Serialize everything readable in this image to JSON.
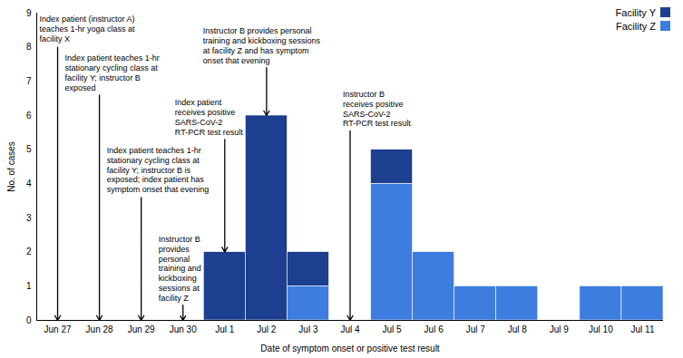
{
  "chart_data": {
    "type": "bar",
    "stacked": true,
    "x_label": "Date of symptom onset or positive test result",
    "y_label": "No. of cases",
    "categories": [
      "Jun 27",
      "Jun 28",
      "Jun 29",
      "Jun 30",
      "Jul 1",
      "Jul 2",
      "Jul 3",
      "Jul 4",
      "Jul 5",
      "Jul 6",
      "Jul 7",
      "Jul 8",
      "Jul 9",
      "Jul 10",
      "Jul 11"
    ],
    "series": [
      {
        "name": "Facility Y",
        "color": "#1d3f8f",
        "values": [
          0,
          0,
          0,
          0,
          2,
          6,
          1,
          0,
          1,
          0,
          0,
          0,
          0,
          0,
          0
        ]
      },
      {
        "name": "Facility Z",
        "color": "#3c7ddf",
        "values": [
          0,
          0,
          0,
          0,
          0,
          0,
          1,
          0,
          4,
          2,
          1,
          1,
          0,
          1,
          1
        ]
      }
    ],
    "ylim": [
      0,
      9
    ],
    "yticks": [
      0,
      1,
      2,
      3,
      4,
      5,
      6,
      7,
      8,
      9
    ],
    "legend": "top-right",
    "annotations": [
      {
        "x": "Jun 27",
        "text": [
          "Index patient (instructor A)",
          "teaches 1-hr yoga class at",
          "facility X"
        ]
      },
      {
        "x": "Jun 28",
        "text": [
          "Index patient teaches 1-hr",
          "stationary cycling class at",
          "facility Y; instructor B",
          "exposed"
        ]
      },
      {
        "x": "Jun 29",
        "text": [
          "Index patient teaches 1-hr",
          "stationary cycling class at",
          "facility Y; instructor B is",
          "exposed; index patient has",
          "symptom onset that evening"
        ]
      },
      {
        "x": "Jun 30",
        "text": [
          "Instructor B",
          "provides",
          "personal",
          "training and",
          "kickboxing",
          "sessions at",
          "facility Z"
        ]
      },
      {
        "x": "Jul 1",
        "text": [
          "Index patient",
          "receives positive",
          "SARS-CoV-2",
          "RT-PCR test result"
        ]
      },
      {
        "x": "Jul 2",
        "text": [
          "Instructor B provides personal",
          "training and kickboxing sessions",
          "at facility Z and has symptom",
          "onset that evening"
        ]
      },
      {
        "x": "Jul 4",
        "text": [
          "Instructor B",
          "receives positive",
          "SARS-CoV-2",
          "RT-PCR test result"
        ]
      }
    ]
  }
}
